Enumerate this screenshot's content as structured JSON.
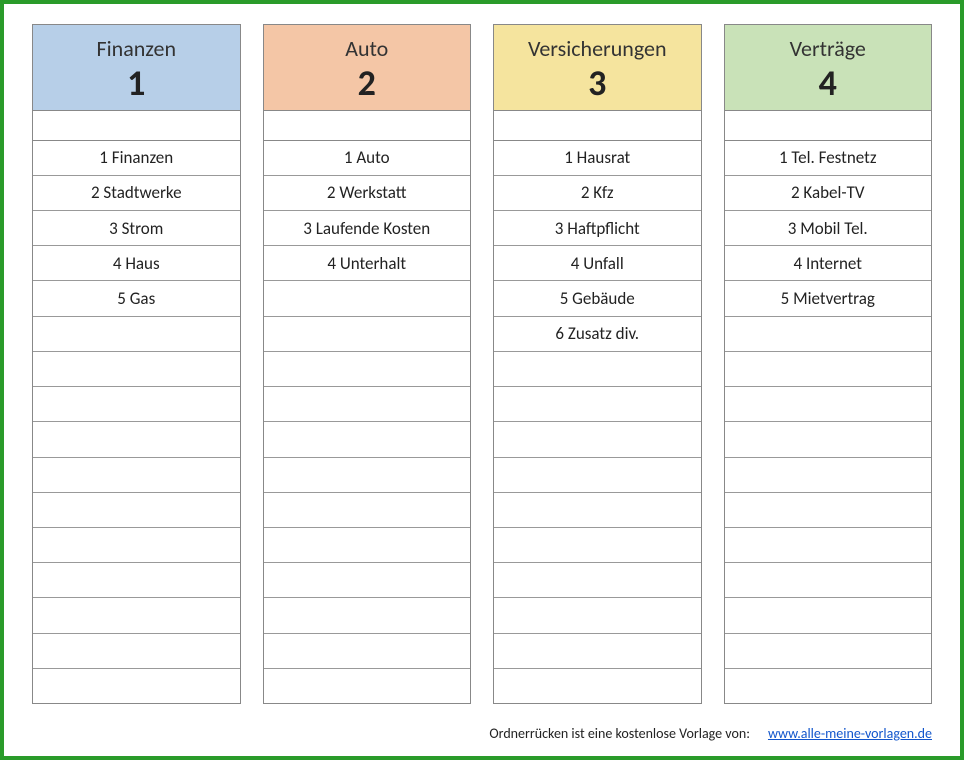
{
  "rows_per_column": 16,
  "columns": [
    {
      "title": "Finanzen",
      "number": "1",
      "header_bg": "#b7cfe8",
      "items": [
        "1 Finanzen",
        "2 Stadtwerke",
        "3 Strom",
        "4 Haus",
        "5 Gas"
      ]
    },
    {
      "title": "Auto",
      "number": "2",
      "header_bg": "#f4c6a6",
      "items": [
        "1 Auto",
        "2 Werkstatt",
        "3 Laufende Kosten",
        "4 Unterhalt"
      ]
    },
    {
      "title": "Versicherungen",
      "number": "3",
      "header_bg": "#f5e49e",
      "items": [
        "1 Hausrat",
        "2 Kfz",
        "3 Haftpflicht",
        "4 Unfall",
        "5 Gebäude",
        "6 Zusatz div."
      ]
    },
    {
      "title": "Verträge",
      "number": "4",
      "header_bg": "#c9e2b8",
      "items": [
        "1 Tel. Festnetz",
        "2 Kabel-TV",
        "3 Mobil Tel.",
        "4 Internet",
        "5 Mietvertrag"
      ]
    }
  ],
  "footer": {
    "text": "Ordnerrücken ist eine kostenlose Vorlage von:",
    "link_text": "www.alle-meine-vorlagen.de",
    "link_href": "http://www.alle-meine-vorlagen.de"
  }
}
